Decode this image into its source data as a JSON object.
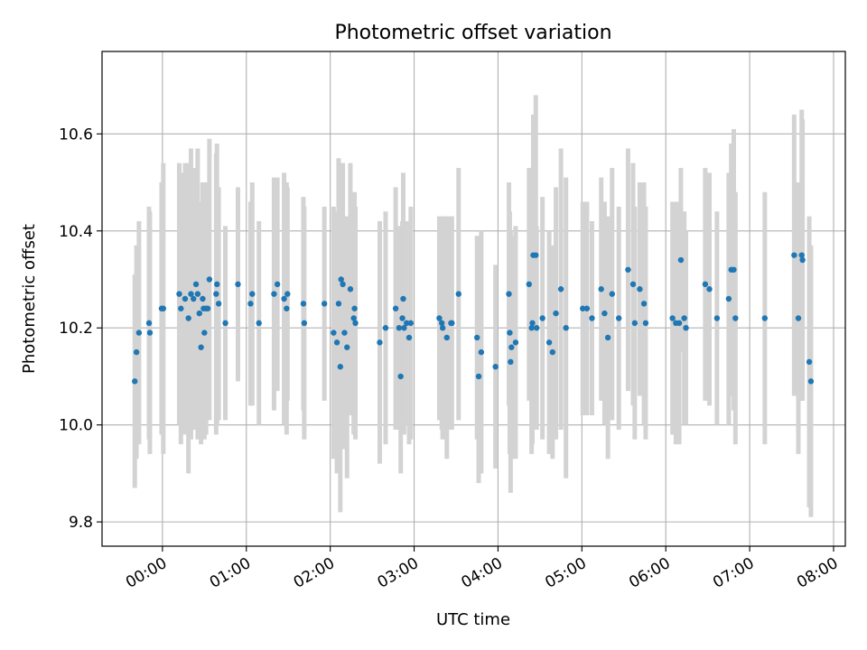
{
  "chart_data": {
    "type": "scatter",
    "title": "Photometric offset variation",
    "xlabel": "UTC time",
    "ylabel": "Photometric offset",
    "grid": true,
    "legend": "none",
    "x_ticks": [
      "00:00",
      "01:00",
      "02:00",
      "03:00",
      "04:00",
      "05:00",
      "06:00",
      "07:00",
      "08:00"
    ],
    "y_ticks": [
      "9.8",
      "10.0",
      "10.2",
      "10.4",
      "10.6"
    ],
    "xlim": [
      -0.72,
      8.14
    ],
    "ylim": [
      9.75,
      10.77
    ],
    "colors": {
      "points": "#1f77b4",
      "errorbars": "#d3d3d3",
      "grid": "#b0b0b0"
    },
    "series": [
      {
        "x": [
          -0.33,
          -0.31,
          -0.28,
          -0.16,
          -0.15,
          -0.01,
          0.01,
          0.2,
          0.22,
          0.27,
          0.31,
          0.34,
          0.37,
          0.4,
          0.42,
          0.44,
          0.46,
          0.48,
          0.49,
          0.5,
          0.52,
          0.54,
          0.56,
          0.64,
          0.65,
          0.67,
          0.75,
          0.9,
          1.05,
          1.07,
          1.15,
          1.33,
          1.37,
          1.45,
          1.48,
          1.49,
          1.68,
          1.69,
          1.93,
          2.04,
          2.08,
          2.1,
          2.12,
          2.13,
          2.15,
          2.17,
          2.2,
          2.24,
          2.28,
          2.29,
          2.3,
          2.59,
          2.66,
          2.78,
          2.82,
          2.84,
          2.86,
          2.87,
          2.88,
          2.91,
          2.94,
          2.96,
          3.3,
          3.33,
          3.34,
          3.39,
          3.44,
          3.45,
          3.53,
          3.75,
          3.77,
          3.8,
          3.97,
          4.13,
          4.14,
          4.15,
          4.16,
          4.21,
          4.37,
          4.4,
          4.41,
          4.42,
          4.45,
          4.46,
          4.53,
          4.61,
          4.65,
          4.69,
          4.75,
          4.81,
          5.01,
          5.06,
          5.12,
          5.23,
          5.27,
          5.31,
          5.36,
          5.44,
          5.55,
          5.61,
          5.63,
          5.69,
          5.74,
          5.76,
          6.08,
          6.12,
          6.16,
          6.18,
          6.22,
          6.24,
          6.47,
          6.52,
          6.61,
          6.75,
          6.78,
          6.81,
          6.83,
          7.18,
          7.53,
          7.58,
          7.62,
          7.63,
          7.71,
          7.73
        ],
        "y": [
          10.09,
          10.15,
          10.19,
          10.21,
          10.19,
          10.24,
          10.24,
          10.27,
          10.24,
          10.26,
          10.22,
          10.27,
          10.26,
          10.29,
          10.27,
          10.23,
          10.16,
          10.26,
          10.24,
          10.19,
          10.24,
          10.24,
          10.3,
          10.27,
          10.29,
          10.25,
          10.21,
          10.29,
          10.25,
          10.27,
          10.21,
          10.27,
          10.29,
          10.26,
          10.24,
          10.27,
          10.25,
          10.21,
          10.25,
          10.19,
          10.17,
          10.25,
          10.12,
          10.3,
          10.29,
          10.19,
          10.16,
          10.28,
          10.22,
          10.24,
          10.21,
          10.17,
          10.2,
          10.24,
          10.2,
          10.1,
          10.22,
          10.26,
          10.2,
          10.21,
          10.18,
          10.21,
          10.22,
          10.21,
          10.2,
          10.18,
          10.21,
          10.21,
          10.27,
          10.18,
          10.1,
          10.15,
          10.12,
          10.27,
          10.19,
          10.13,
          10.16,
          10.17,
          10.29,
          10.2,
          10.21,
          10.35,
          10.35,
          10.2,
          10.22,
          10.17,
          10.15,
          10.23,
          10.28,
          10.2,
          10.24,
          10.24,
          10.22,
          10.28,
          10.23,
          10.18,
          10.27,
          10.22,
          10.32,
          10.29,
          10.21,
          10.28,
          10.25,
          10.21,
          10.22,
          10.21,
          10.21,
          10.34,
          10.22,
          10.2,
          10.29,
          10.28,
          10.22,
          10.26,
          10.32,
          10.32,
          10.22,
          10.22,
          10.35,
          10.22,
          10.35,
          10.34,
          10.13,
          10.09
        ],
        "yerr": [
          0.22,
          0.22,
          0.23,
          0.24,
          0.25,
          0.26,
          0.3,
          0.27,
          0.28,
          0.28,
          0.32,
          0.3,
          0.27,
          0.24,
          0.3,
          0.23,
          0.2,
          0.24,
          0.22,
          0.22,
          0.26,
          0.22,
          0.29,
          0.29,
          0.29,
          0.24,
          0.2,
          0.2,
          0.21,
          0.23,
          0.21,
          0.24,
          0.22,
          0.26,
          0.26,
          0.22,
          0.22,
          0.24,
          0.2,
          0.26,
          0.27,
          0.3,
          0.3,
          0.24,
          0.25,
          0.24,
          0.27,
          0.26,
          0.24,
          0.24,
          0.24,
          0.25,
          0.24,
          0.25,
          0.21,
          0.2,
          0.2,
          0.26,
          0.22,
          0.21,
          0.22,
          0.24,
          0.21,
          0.22,
          0.23,
          0.25,
          0.22,
          0.22,
          0.26,
          0.21,
          0.22,
          0.25,
          0.21,
          0.23,
          0.25,
          0.27,
          0.23,
          0.24,
          0.24,
          0.26,
          0.25,
          0.29,
          0.33,
          0.21,
          0.25,
          0.23,
          0.22,
          0.26,
          0.29,
          0.31,
          0.22,
          0.22,
          0.2,
          0.23,
          0.23,
          0.25,
          0.26,
          0.23,
          0.25,
          0.25,
          0.24,
          0.22,
          0.25,
          0.24,
          0.24,
          0.25,
          0.25,
          0.19,
          0.22,
          0.2,
          0.24,
          0.24,
          0.22,
          0.26,
          0.26,
          0.29,
          0.26,
          0.26,
          0.29,
          0.28,
          0.3,
          0.29,
          0.3,
          0.28
        ]
      }
    ]
  }
}
